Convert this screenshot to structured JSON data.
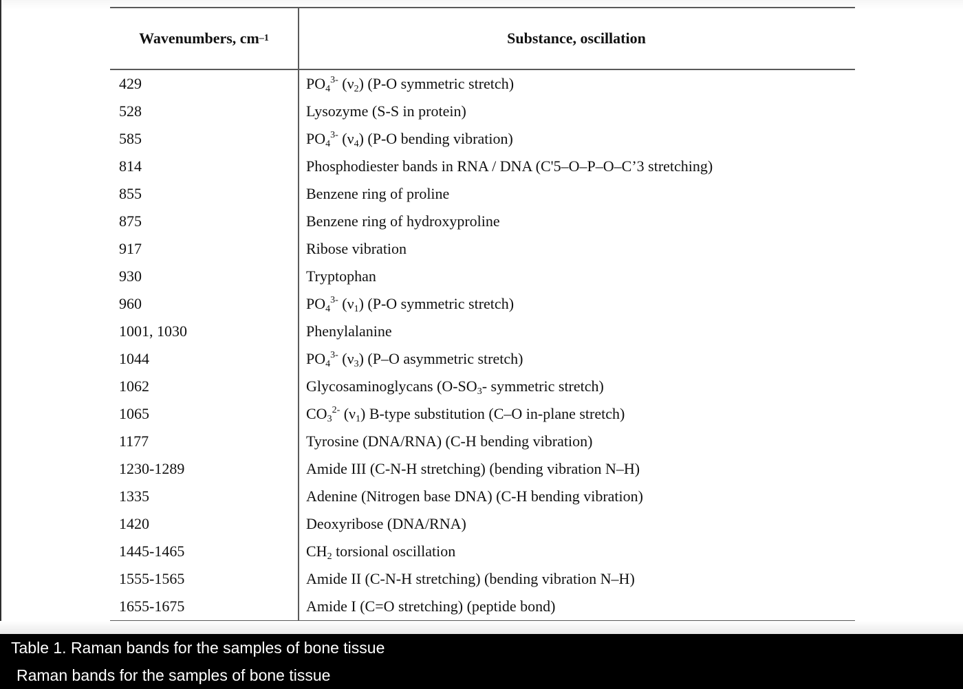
{
  "table": {
    "header": {
      "col1": "Wavenumbers, cm^–1^",
      "col2": "Substance, oscillation"
    },
    "rows": [
      {
        "wavenumber": "429",
        "substance": "PO~4~^3-^ (ν~2~) (P-O symmetric stretch)"
      },
      {
        "wavenumber": "528",
        "substance": "Lysozyme (S-S in protein)"
      },
      {
        "wavenumber": "585",
        "substance": "PO~4~^3-^ (ν~4~) (P-O bending vibration)"
      },
      {
        "wavenumber": "814",
        "substance": "Phosphodiester bands in RNA / DNA (C'5–O–P–O–C’3 stretching)"
      },
      {
        "wavenumber": "855",
        "substance": "Benzene ring of proline"
      },
      {
        "wavenumber": "875",
        "substance": "Benzene ring of hydroxyproline"
      },
      {
        "wavenumber": "917",
        "substance": "Ribose vibration"
      },
      {
        "wavenumber": "930",
        "substance": "Tryptophan"
      },
      {
        "wavenumber": "960",
        "substance": "PO~4~^3-^ (ν~1~) (P-O symmetric stretch)"
      },
      {
        "wavenumber": "1001, 1030",
        "substance": "Phenylalanine"
      },
      {
        "wavenumber": "1044",
        "substance": "PO~4~^3-^ (ν~3~) (P–O asymmetric stretch)"
      },
      {
        "wavenumber": "1062",
        "substance": "Glycosaminoglycans (O-SO~3~- symmetric stretch)"
      },
      {
        "wavenumber": "1065",
        "substance": "CO~3~^2-^ (ν~1~) B-type substitution (C–O in-plane stretch)"
      },
      {
        "wavenumber": "1177",
        "substance": "Tyrosine (DNA/RNA) (C-H bending vibration)"
      },
      {
        "wavenumber": "1230-1289",
        "substance": "Amide III (C-N-H stretching) (bending vibration N–H)"
      },
      {
        "wavenumber": "1335",
        "substance": "Adenine (Nitrogen base DNA) (C-H bending vibration)"
      },
      {
        "wavenumber": "1420",
        "substance": "Deoxyribose (DNA/RNA)"
      },
      {
        "wavenumber": "1445-1465",
        "substance": "CH~2~ torsional oscillation"
      },
      {
        "wavenumber": "1555-1565",
        "substance": "Amide II (C-N-H stretching) (bending vibration N–H)"
      },
      {
        "wavenumber": "1655-1675",
        "substance": "Amide I (C=O stretching) (peptide bond)"
      }
    ]
  },
  "caption": {
    "line1": "Table 1. Raman bands for the samples of bone tissue",
    "line2": "Raman bands for the samples of bone tissue"
  },
  "colors": {
    "rule": "#595959",
    "text": "#111111",
    "caption_bg": "#000000",
    "caption_text": "#ffffff"
  }
}
